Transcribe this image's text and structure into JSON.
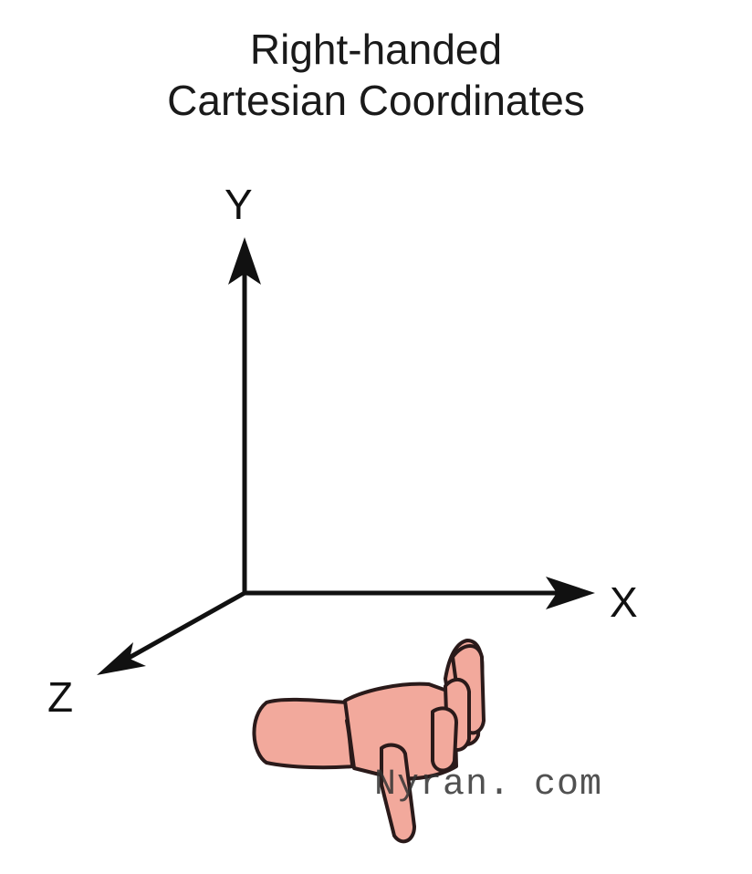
{
  "title": {
    "line1": "Right-handed",
    "line2": "Cartesian Coordinates"
  },
  "axes": {
    "y_label": "Y",
    "x_label": "X",
    "z_label": "Z"
  },
  "illustration": {
    "icon": "right-hand-icon",
    "skin_color": "#f2a99c",
    "outline_color": "#2a1a1a"
  },
  "watermark": "Nyran. com"
}
